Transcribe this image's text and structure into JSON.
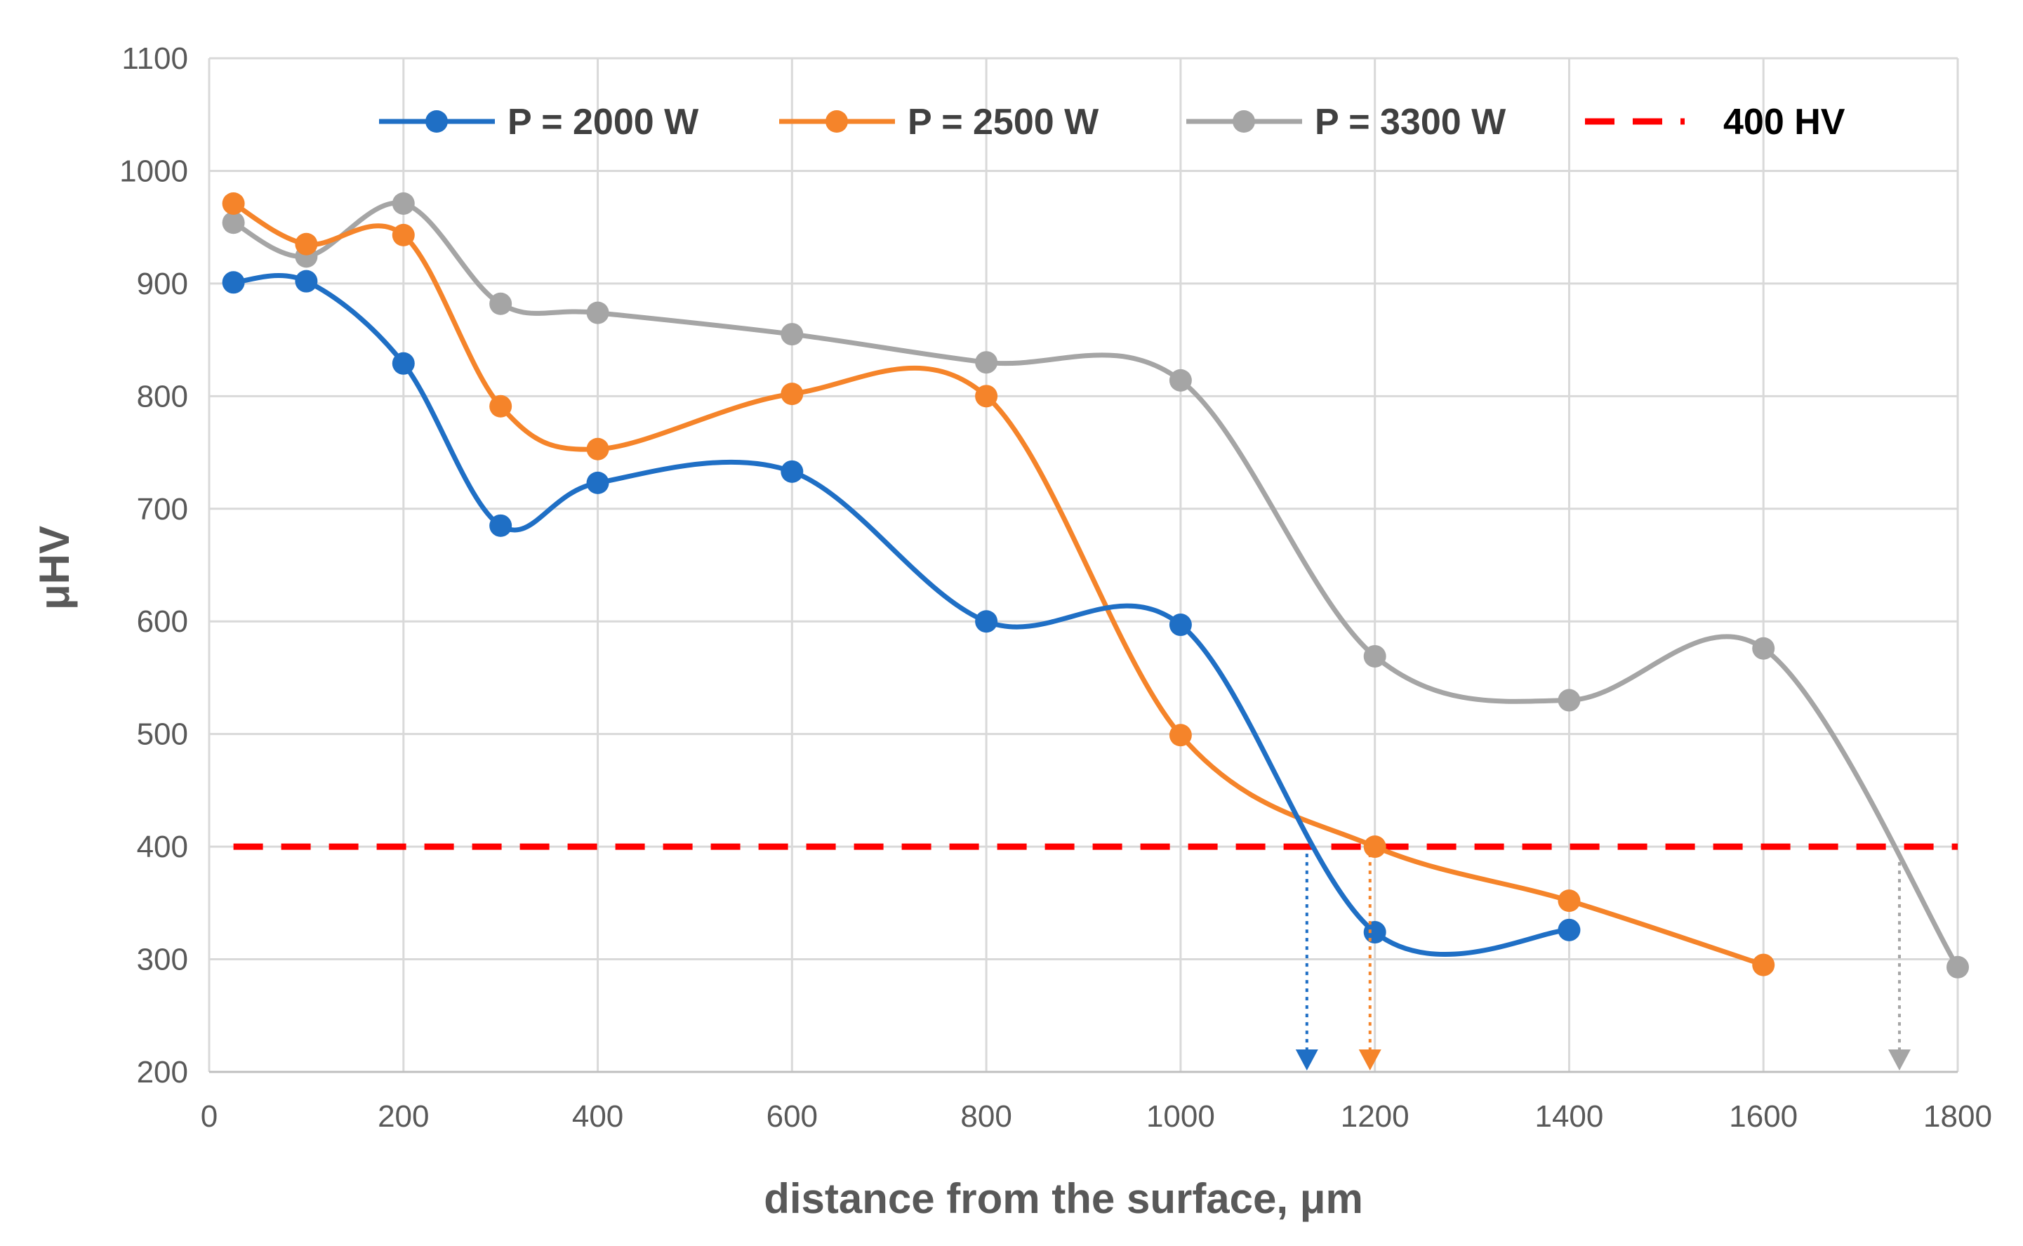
{
  "chart_data": {
    "type": "line",
    "title": "",
    "xlabel": "distance from the surface, μm",
    "ylabel": "μHV",
    "xlim": [
      0,
      1800
    ],
    "ylim": [
      200,
      1100
    ],
    "xticks": [
      0,
      200,
      400,
      600,
      800,
      1000,
      1200,
      1400,
      1600,
      1800
    ],
    "yticks": [
      200,
      300,
      400,
      500,
      600,
      700,
      800,
      900,
      1000,
      1100
    ],
    "xtick_labels": [
      "0",
      "200",
      "400",
      "600",
      "800",
      "1000",
      "1200",
      "1400",
      "1600",
      "1800"
    ],
    "ytick_labels": [
      "200",
      "300",
      "400",
      "500",
      "600",
      "700",
      "800",
      "900",
      "1000",
      "1100"
    ],
    "grid": true,
    "legend_position": "top",
    "series": [
      {
        "name": "P = 2000 W",
        "color": "#1F6FC5",
        "x": [
          25,
          100,
          200,
          300,
          400,
          600,
          800,
          1000,
          1200,
          1400
        ],
        "y": [
          901,
          902,
          829,
          685,
          723,
          733,
          600,
          597,
          324,
          326
        ],
        "cutoff_x": 1130
      },
      {
        "name": "P = 2500 W",
        "color": "#F5842A",
        "x": [
          25,
          100,
          200,
          300,
          400,
          600,
          800,
          1000,
          1200,
          1400,
          1600
        ],
        "y": [
          971,
          935,
          943,
          791,
          753,
          802,
          800,
          499,
          400,
          352,
          295
        ],
        "cutoff_x": 1195
      },
      {
        "name": "P = 3300 W",
        "color": "#A5A5A5",
        "x": [
          25,
          100,
          200,
          300,
          400,
          600,
          800,
          1000,
          1200,
          1400,
          1600,
          1800
        ],
        "y": [
          954,
          924,
          971,
          882,
          874,
          855,
          830,
          814,
          569,
          530,
          576,
          293
        ],
        "cutoff_x": 1740
      }
    ],
    "threshold": {
      "name": "400 HV",
      "value": 400,
      "color": "#FF0000"
    }
  }
}
